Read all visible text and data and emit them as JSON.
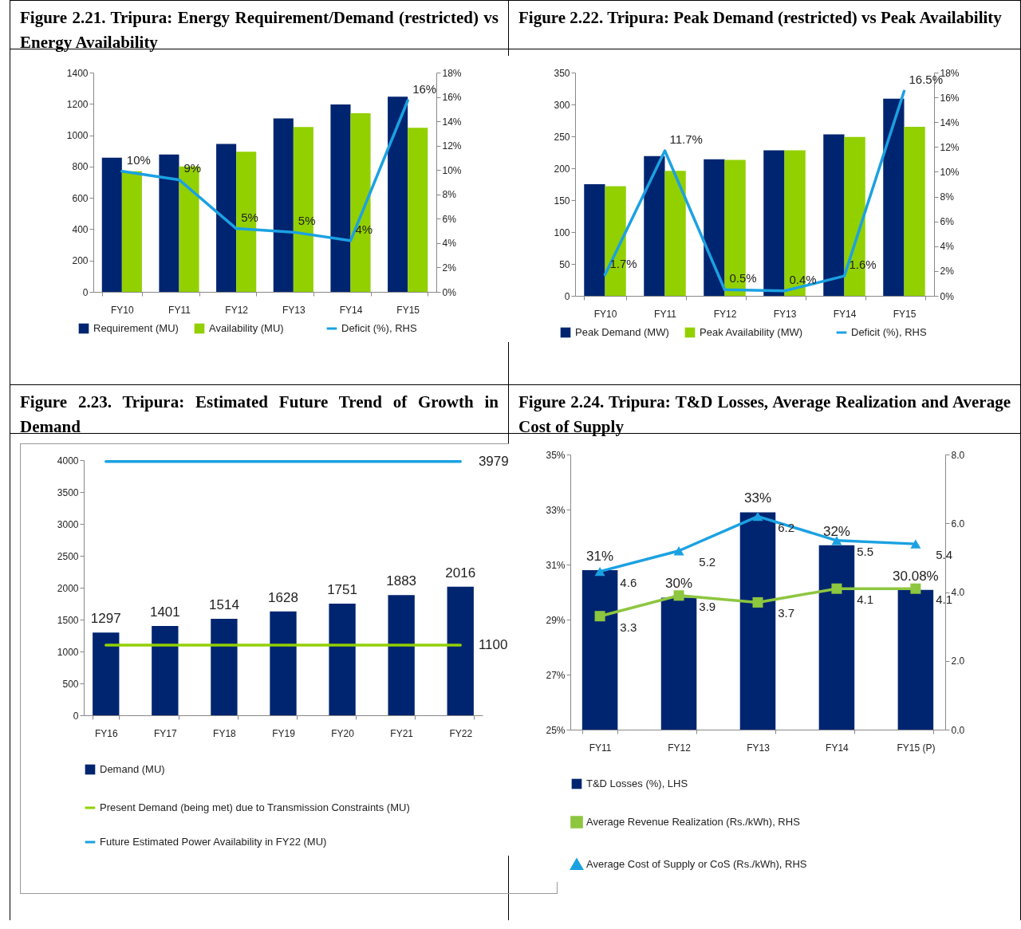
{
  "chart_data": [
    {
      "type": "bar",
      "title": "Figure 2.21. Tripura: Energy Requirement/Demand (restricted) vs Energy Availability",
      "categories": [
        "FY10",
        "FY11",
        "FY12",
        "FY13",
        "FY14",
        "FY15"
      ],
      "series": [
        {
          "name": "Requirement (MU)",
          "color": "#002570",
          "values": [
            857,
            877,
            945,
            1107,
            1197,
            1246
          ]
        },
        {
          "name": "Availability (MU)",
          "color": "#92d000",
          "values": [
            770,
            800,
            895,
            1053,
            1141,
            1048
          ]
        },
        {
          "name": "Deficit (%), RHS",
          "type": "line",
          "axis": "y2",
          "color": "#1ba1e2",
          "values": [
            9.9,
            9.2,
            5.2,
            4.9,
            4.2,
            15.7
          ],
          "value_labels": [
            "10%",
            "9%",
            "5%",
            "5%",
            "4%",
            "16%"
          ]
        }
      ],
      "ylim": [
        0,
        1400
      ],
      "yticks": [
        0,
        200,
        400,
        600,
        800,
        1000,
        1200,
        1400
      ],
      "y2lim": [
        0,
        18
      ],
      "y2ticks": [
        {
          "value": 0,
          "label": "0%"
        },
        {
          "value": 2,
          "label": "2%"
        },
        {
          "value": 4,
          "label": "4%"
        },
        {
          "value": 6,
          "label": "6%"
        },
        {
          "value": 8,
          "label": "8%"
        },
        {
          "value": 10,
          "label": "10%"
        },
        {
          "value": 12,
          "label": "12%"
        },
        {
          "value": 14,
          "label": "14%"
        },
        {
          "value": 16,
          "label": "16%"
        },
        {
          "value": 18,
          "label": "18%"
        }
      ],
      "grid": false,
      "legend": "bottom"
    },
    {
      "type": "bar",
      "title": "Figure 2.22. Tripura: Peak Demand (restricted) vs Peak Availability",
      "categories": [
        "FY10",
        "FY11",
        "FY12",
        "FY13",
        "FY14",
        "FY15"
      ],
      "series": [
        {
          "name": "Peak Demand (MW)",
          "color": "#002570",
          "values": [
            175,
            219,
            214,
            228,
            253,
            309
          ]
        },
        {
          "name": "Peak Availability (MW)",
          "color": "#92d000",
          "values": [
            172,
            196,
            213,
            228,
            249,
            265
          ]
        },
        {
          "name": "Deficit (%), RHS",
          "type": "line",
          "axis": "y2",
          "color": "#1ba1e2",
          "values": [
            1.7,
            11.7,
            0.5,
            0.4,
            1.6,
            16.5
          ],
          "value_labels": [
            "1.7%",
            "11.7%",
            "0.5%",
            "0.4%",
            "1.6%",
            "16.5%"
          ]
        }
      ],
      "ylim": [
        0,
        350
      ],
      "yticks": [
        0,
        50,
        100,
        150,
        200,
        250,
        300,
        350
      ],
      "y2lim": [
        0,
        18
      ],
      "y2ticks": [
        {
          "value": 0,
          "label": "0%"
        },
        {
          "value": 2,
          "label": "2%"
        },
        {
          "value": 4,
          "label": "4%"
        },
        {
          "value": 6,
          "label": "6%"
        },
        {
          "value": 8,
          "label": "8%"
        },
        {
          "value": 10,
          "label": "10%"
        },
        {
          "value": 12,
          "label": "12%"
        },
        {
          "value": 14,
          "label": "14%"
        },
        {
          "value": 16,
          "label": "16%"
        },
        {
          "value": 18,
          "label": "18%"
        }
      ],
      "grid": false,
      "legend": "bottom"
    },
    {
      "type": "bar",
      "title": "Figure 2.23. Tripura: Estimated Future Trend of Growth in Demand",
      "categories": [
        "FY16",
        "FY17",
        "FY18",
        "FY19",
        "FY20",
        "FY21",
        "FY22"
      ],
      "series": [
        {
          "name": "Demand (MU)",
          "color": "#002570",
          "values": [
            1297,
            1401,
            1514,
            1628,
            1751,
            1883,
            2016
          ],
          "value_labels": [
            "1297",
            "1401",
            "1514",
            "1628",
            "1751",
            "1883",
            "2016"
          ]
        },
        {
          "name": "Present Demand (being met) due to Transmission Constraints (MU)",
          "type": "line",
          "color": "#92d000",
          "values": [
            1100,
            1100,
            1100,
            1100,
            1100,
            1100,
            1100
          ],
          "value_labels": [
            null,
            null,
            null,
            null,
            null,
            null,
            "1100"
          ]
        },
        {
          "name": "Future Estimated Power Availability in FY22 (MU)",
          "type": "line",
          "color": "#1ba1e2",
          "values": [
            3979,
            3979,
            3979,
            3979,
            3979,
            3979,
            3979
          ],
          "value_labels": [
            null,
            null,
            null,
            null,
            null,
            null,
            "3979"
          ]
        }
      ],
      "ylim": [
        0,
        4000
      ],
      "yticks": [
        0,
        500,
        1000,
        1500,
        2000,
        2500,
        3000,
        3500,
        4000
      ],
      "grid": false,
      "legend": "bottom"
    },
    {
      "type": "bar",
      "title": "Figure 2.24. Tripura: T&D Losses, Average Realization and Average Cost of Supply",
      "categories": [
        "FY11",
        "FY12",
        "FY13",
        "FY14",
        "FY15 (P)"
      ],
      "series": [
        {
          "name": "T&D Losses (%), LHS",
          "color": "#002570",
          "values": [
            30.8,
            29.8,
            32.9,
            31.7,
            30.08
          ],
          "value_labels": [
            "31%",
            "30%",
            "33%",
            "32%",
            "30.08%"
          ]
        },
        {
          "name": "Average Revenue Realization (Rs./kWh), RHS",
          "type": "line",
          "axis": "y2",
          "marker": "square",
          "color": "#8dc63f",
          "values": [
            3.3,
            3.9,
            3.7,
            4.1,
            4.1
          ],
          "value_labels": [
            "3.3",
            "3.9",
            "3.7",
            "4.1",
            "4.1"
          ]
        },
        {
          "name": "Average Cost of Supply or CoS (Rs./kWh), RHS",
          "type": "line",
          "axis": "y2",
          "marker": "triangle",
          "color": "#1ba1e2",
          "values": [
            4.6,
            5.2,
            6.2,
            5.5,
            5.4
          ],
          "value_labels": [
            "4.6",
            "5.2",
            "6.2",
            "5.5",
            "5.4"
          ]
        }
      ],
      "ylim": [
        25,
        35
      ],
      "yticks": [
        {
          "value": 25,
          "label": "25%"
        },
        {
          "value": 27,
          "label": "27%"
        },
        {
          "value": 29,
          "label": "29%"
        },
        {
          "value": 31,
          "label": "31%"
        },
        {
          "value": 33,
          "label": "33%"
        },
        {
          "value": 35,
          "label": "35%"
        }
      ],
      "y2lim": [
        0,
        8
      ],
      "y2ticks": [
        {
          "value": 0,
          "label": "0.0"
        },
        {
          "value": 2,
          "label": "2.0"
        },
        {
          "value": 4,
          "label": "4.0"
        },
        {
          "value": 6,
          "label": "6.0"
        },
        {
          "value": 8,
          "label": "8.0"
        }
      ],
      "grid": false,
      "legend": "bottom"
    }
  ]
}
